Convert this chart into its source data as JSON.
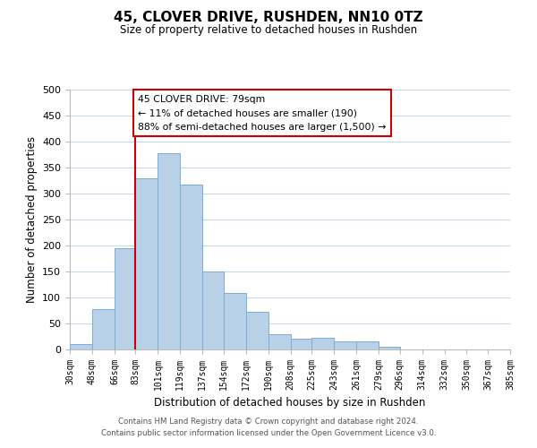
{
  "title": "45, CLOVER DRIVE, RUSHDEN, NN10 0TZ",
  "subtitle": "Size of property relative to detached houses in Rushden",
  "xlabel": "Distribution of detached houses by size in Rushden",
  "ylabel": "Number of detached properties",
  "bar_color": "#b8d0e8",
  "bar_edge_color": "#7aafd4",
  "bin_edges": [
    30,
    48,
    66,
    83,
    101,
    119,
    137,
    154,
    172,
    190,
    208,
    225,
    243,
    261,
    279,
    296,
    314,
    332,
    350,
    367,
    385
  ],
  "counts": [
    10,
    78,
    195,
    330,
    378,
    317,
    150,
    108,
    72,
    30,
    20,
    22,
    15,
    15,
    5,
    0,
    0,
    0,
    0,
    0
  ],
  "tick_labels": [
    "30sqm",
    "48sqm",
    "66sqm",
    "83sqm",
    "101sqm",
    "119sqm",
    "137sqm",
    "154sqm",
    "172sqm",
    "190sqm",
    "208sqm",
    "225sqm",
    "243sqm",
    "261sqm",
    "279sqm",
    "296sqm",
    "314sqm",
    "332sqm",
    "350sqm",
    "367sqm",
    "385sqm"
  ],
  "ylim": [
    0,
    500
  ],
  "yticks": [
    0,
    50,
    100,
    150,
    200,
    250,
    300,
    350,
    400,
    450,
    500
  ],
  "vline_x": 83,
  "vline_color": "#cc0000",
  "annotation_title": "45 CLOVER DRIVE: 79sqm",
  "annotation_line1": "← 11% of detached houses are smaller (190)",
  "annotation_line2": "88% of semi-detached houses are larger (1,500) →",
  "annotation_box_color": "#ffffff",
  "annotation_box_edge": "#cc0000",
  "footer_line1": "Contains HM Land Registry data © Crown copyright and database right 2024.",
  "footer_line2": "Contains public sector information licensed under the Open Government Licence v3.0.",
  "background_color": "#ffffff",
  "grid_color": "#c8d8e8"
}
